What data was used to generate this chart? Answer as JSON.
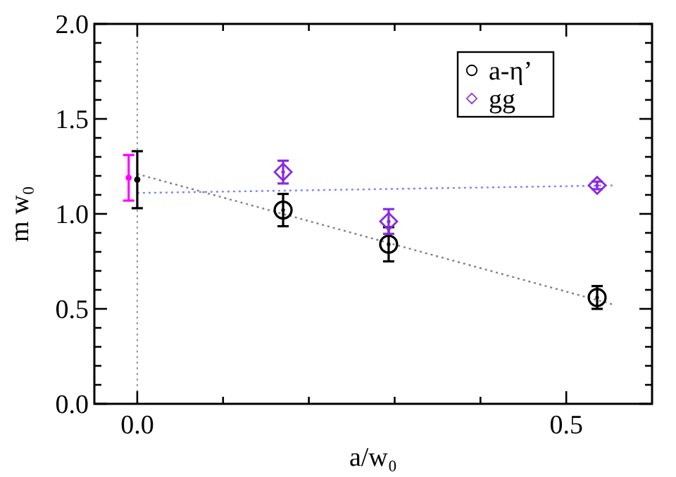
{
  "chart_data": {
    "type": "scatter",
    "xlabel": "a/w₀",
    "ylabel": "m w₀",
    "xlim": [
      -0.05,
      0.6
    ],
    "ylim": [
      0,
      2
    ],
    "xticks": [
      {
        "value": 0,
        "label": "0.0"
      },
      {
        "value": 0.1,
        "label": null
      },
      {
        "value": 0.2,
        "label": null
      },
      {
        "value": 0.3,
        "label": null
      },
      {
        "value": 0.4,
        "label": null
      },
      {
        "value": 0.5,
        "label": "0.5"
      }
    ],
    "yticks": [
      {
        "value": 0,
        "label": "0.0"
      },
      {
        "value": 0.1,
        "label": null
      },
      {
        "value": 0.2,
        "label": null
      },
      {
        "value": 0.3,
        "label": null
      },
      {
        "value": 0.4,
        "label": null
      },
      {
        "value": 0.5,
        "label": "0.5"
      },
      {
        "value": 0.6,
        "label": null
      },
      {
        "value": 0.7,
        "label": null
      },
      {
        "value": 0.8,
        "label": null
      },
      {
        "value": 0.9,
        "label": null
      },
      {
        "value": 1,
        "label": "1.0"
      },
      {
        "value": 1.1,
        "label": null
      },
      {
        "value": 1.2,
        "label": null
      },
      {
        "value": 1.3,
        "label": null
      },
      {
        "value": 1.4,
        "label": null
      },
      {
        "value": 1.5,
        "label": "1.5"
      },
      {
        "value": 1.6,
        "label": null
      },
      {
        "value": 1.7,
        "label": null
      },
      {
        "value": 1.8,
        "label": null
      },
      {
        "value": 1.9,
        "label": null
      },
      {
        "value": 2,
        "label": "2.0"
      }
    ],
    "legend": "top right",
    "ref_lines": [
      {
        "axis": "x",
        "value": 0,
        "color": "#999999",
        "line_style": "dotted"
      }
    ],
    "series": [
      {
        "type": "line",
        "color": "#808080",
        "line_style": "dotted",
        "marker": "none",
        "x": [
          0,
          0.557
        ],
        "values": [
          1.21,
          0.52
        ]
      },
      {
        "type": "line",
        "color": "#8080ff",
        "line_style": "dotted",
        "marker": "none",
        "x": [
          0,
          0.557
        ],
        "values": [
          1.11,
          1.15
        ]
      },
      {
        "name": "a-η’",
        "color": "#000000",
        "marker": "circle",
        "x": [
          0.17,
          0.293,
          0.536
        ],
        "values": [
          1.02,
          0.84,
          0.56
        ],
        "errors": [
          0.085,
          0.09,
          0.06
        ]
      },
      {
        "name": "gg",
        "color": "#8a2be2",
        "marker": "diamond",
        "x": [
          0.17,
          0.293,
          0.536
        ],
        "values": [
          1.22,
          0.96,
          1.15
        ],
        "errors": [
          0.06,
          0.065,
          0.02
        ]
      },
      {
        "color": "#000000",
        "x": [
          0
        ],
        "values": [
          1.18
        ],
        "errors": [
          0.15
        ]
      },
      {
        "color": "#ff00ff",
        "x": [
          -0.01
        ],
        "values": [
          1.19
        ],
        "errors": [
          0.12
        ]
      }
    ]
  }
}
